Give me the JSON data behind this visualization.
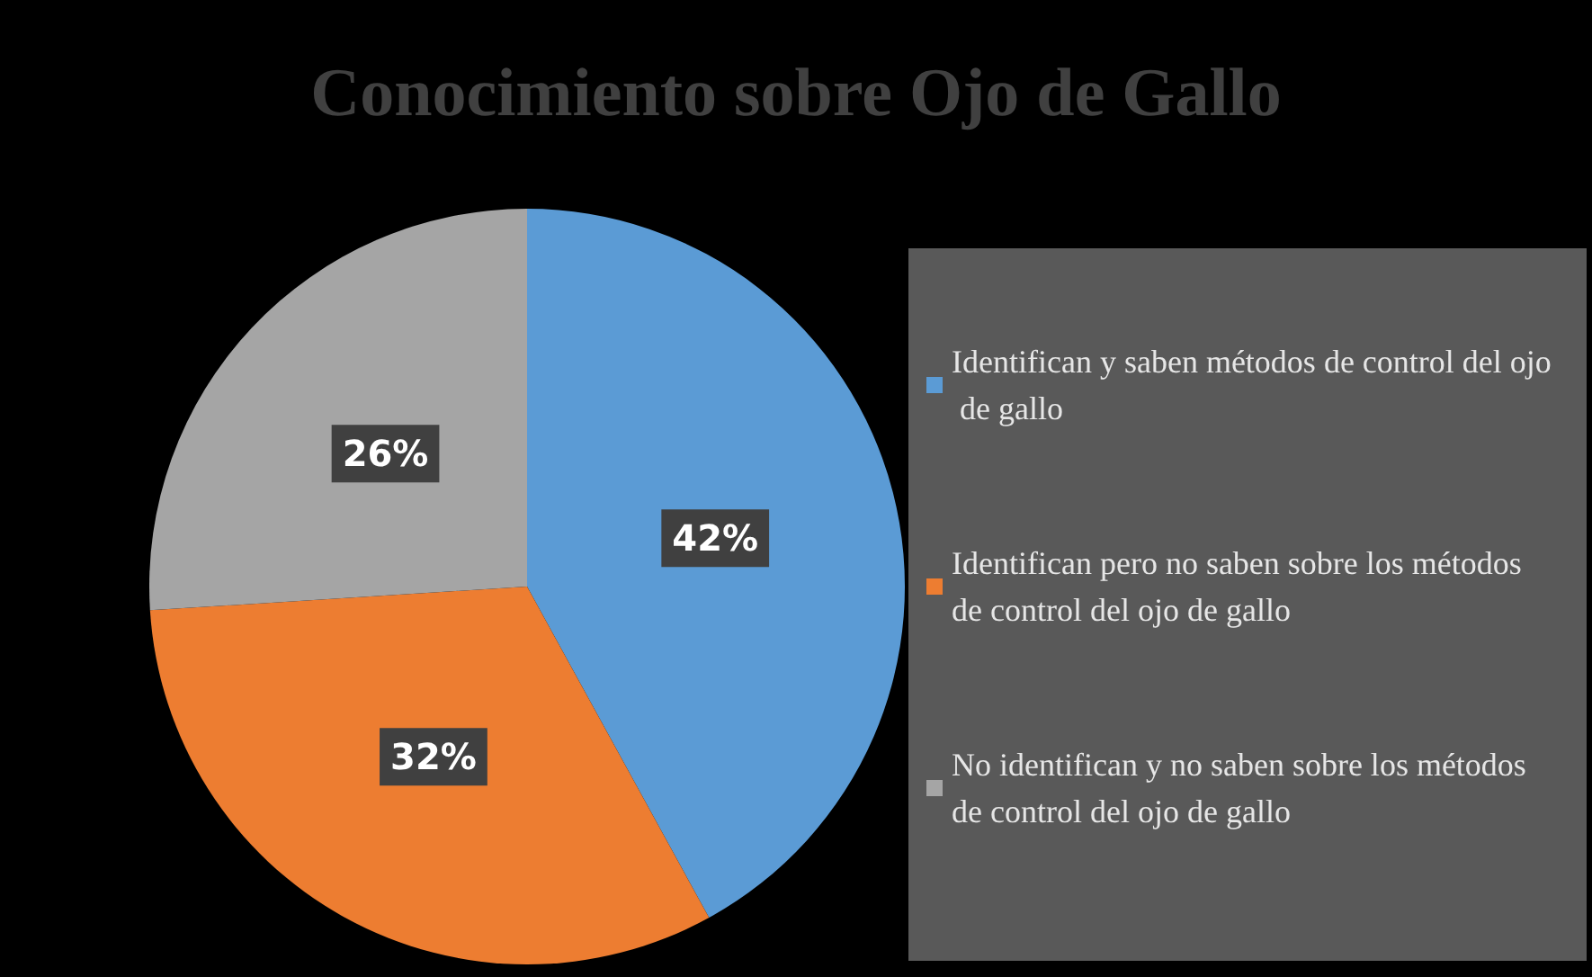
{
  "chart_data": {
    "type": "pie",
    "title": "Conocimiento sobre Ojo de Gallo",
    "categories": [
      "Identifican y saben métodos de control del ojo de gallo",
      "Identifican pero no saben sobre los métodos de control del ojo de gallo",
      "No identifican y no saben sobre los métodos de control del ojo de gallo"
    ],
    "values": [
      42,
      32,
      26
    ],
    "colors": [
      "#5b9bd5",
      "#ed7d31",
      "#a5a5a5"
    ],
    "value_labels": [
      "42%",
      "32%",
      "26%"
    ],
    "legend": "right"
  }
}
